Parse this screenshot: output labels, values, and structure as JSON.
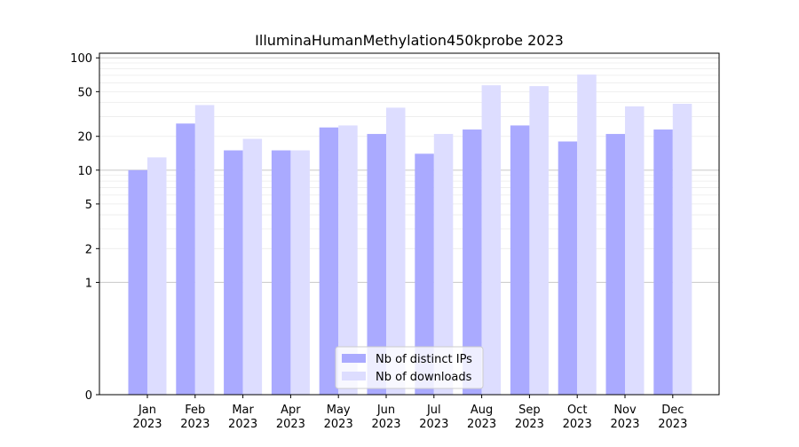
{
  "chart_data": {
    "type": "bar",
    "title": "IlluminaHumanMethylation450kprobe 2023",
    "xlabel": "",
    "ylabel": "",
    "yscale": "symlog",
    "ylim": [
      0,
      110
    ],
    "yticks": [
      0,
      1,
      2,
      5,
      10,
      20,
      50,
      100
    ],
    "categories": [
      [
        "Jan",
        "2023"
      ],
      [
        "Feb",
        "2023"
      ],
      [
        "Mar",
        "2023"
      ],
      [
        "Apr",
        "2023"
      ],
      [
        "May",
        "2023"
      ],
      [
        "Jun",
        "2023"
      ],
      [
        "Jul",
        "2023"
      ],
      [
        "Aug",
        "2023"
      ],
      [
        "Sep",
        "2023"
      ],
      [
        "Oct",
        "2023"
      ],
      [
        "Nov",
        "2023"
      ],
      [
        "Dec",
        "2023"
      ]
    ],
    "series": [
      {
        "name": "Nb of distinct IPs",
        "color": "#aaaaff",
        "values": [
          10,
          26,
          15,
          15,
          24,
          21,
          14,
          23,
          25,
          18,
          21,
          23
        ]
      },
      {
        "name": "Nb of downloads",
        "color": "#ddddff",
        "values": [
          13,
          38,
          19,
          15,
          25,
          36,
          21,
          57,
          56,
          71,
          37,
          39
        ]
      }
    ],
    "grid": true,
    "legend_position": "lower-center"
  }
}
